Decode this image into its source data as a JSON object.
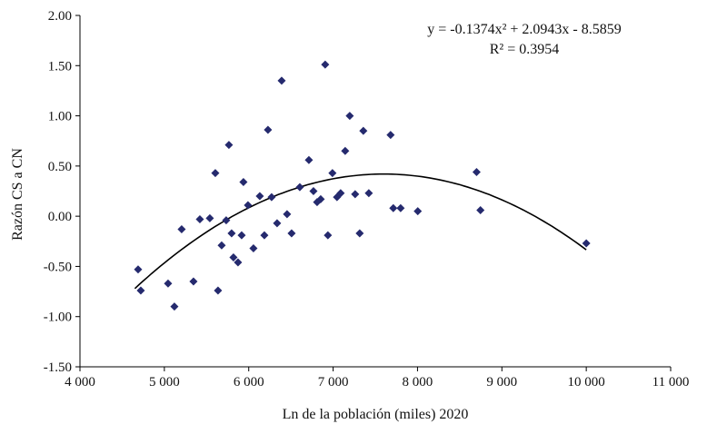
{
  "chart_data": {
    "type": "scatter",
    "title": "",
    "xlabel": "Ln de la población (miles) 2020",
    "ylabel": "Razón CS a CN",
    "xlim": [
      4000,
      11000
    ],
    "ylim": [
      -1.5,
      2.0
    ],
    "grid": false,
    "legend": "none",
    "x_ticks": [
      {
        "value": 4000,
        "label": "4 000"
      },
      {
        "value": 5000,
        "label": "5 000"
      },
      {
        "value": 6000,
        "label": "6 000"
      },
      {
        "value": 7000,
        "label": "7 000"
      },
      {
        "value": 8000,
        "label": "8 000"
      },
      {
        "value": 9000,
        "label": "9 000"
      },
      {
        "value": 10000,
        "label": "10 000"
      },
      {
        "value": 11000,
        "label": "11 000"
      }
    ],
    "y_ticks": [
      {
        "value": 2.0,
        "label": "2.00"
      },
      {
        "value": 1.5,
        "label": "1.50"
      },
      {
        "value": 1.0,
        "label": "1.00"
      },
      {
        "value": 0.5,
        "label": "0.50"
      },
      {
        "value": 0.0,
        "label": "0.00"
      },
      {
        "value": -0.5,
        "label": "-0.50"
      },
      {
        "value": -1.0,
        "label": "-1.00"
      },
      {
        "value": -1.5,
        "label": "-1.50"
      }
    ],
    "annotation": {
      "equation": "y = -0.1374x² + 2.0943x - 8.5859",
      "r_squared": "R² = 0.3954"
    },
    "marker": {
      "shape": "diamond",
      "color": "#252A6E",
      "size": 9
    },
    "trendline": {
      "type": "quadratic",
      "vertex_x": 7600,
      "vertex_y": 0.42,
      "a": -1.31e-07,
      "x_start": 4650,
      "x_end": 10040,
      "color": "#000000"
    },
    "points": [
      [
        4689,
        -0.53
      ],
      [
        4721,
        -0.74
      ],
      [
        5044,
        -0.67
      ],
      [
        5119,
        -0.9
      ],
      [
        5205,
        -0.13
      ],
      [
        5345,
        -0.65
      ],
      [
        5421,
        -0.03
      ],
      [
        5539,
        -0.02
      ],
      [
        5604,
        0.43
      ],
      [
        5636,
        -0.74
      ],
      [
        5679,
        -0.29
      ],
      [
        5733,
        -0.04
      ],
      [
        5765,
        0.71
      ],
      [
        5797,
        -0.17
      ],
      [
        5819,
        -0.41
      ],
      [
        5873,
        -0.46
      ],
      [
        5916,
        -0.19
      ],
      [
        5937,
        0.34
      ],
      [
        5991,
        0.11
      ],
      [
        6056,
        -0.32
      ],
      [
        6131,
        0.2
      ],
      [
        6185,
        -0.19
      ],
      [
        6228,
        0.86
      ],
      [
        6271,
        0.19
      ],
      [
        6336,
        -0.07
      ],
      [
        6390,
        1.35
      ],
      [
        6454,
        0.02
      ],
      [
        6508,
        -0.17
      ],
      [
        6605,
        0.29
      ],
      [
        6713,
        0.56
      ],
      [
        6767,
        0.25
      ],
      [
        6810,
        0.14
      ],
      [
        6853,
        0.17
      ],
      [
        6906,
        1.51
      ],
      [
        6938,
        -0.19
      ],
      [
        6992,
        0.43
      ],
      [
        7046,
        0.19
      ],
      [
        7089,
        0.23
      ],
      [
        7143,
        0.65
      ],
      [
        7197,
        1.0
      ],
      [
        7261,
        0.22
      ],
      [
        7315,
        -0.17
      ],
      [
        7358,
        0.85
      ],
      [
        7423,
        0.23
      ],
      [
        7681,
        0.81
      ],
      [
        7713,
        0.08
      ],
      [
        7800,
        0.08
      ],
      [
        8003,
        0.05
      ],
      [
        8700,
        0.44
      ],
      [
        8746,
        0.06
      ],
      [
        10000,
        -0.27
      ]
    ]
  }
}
